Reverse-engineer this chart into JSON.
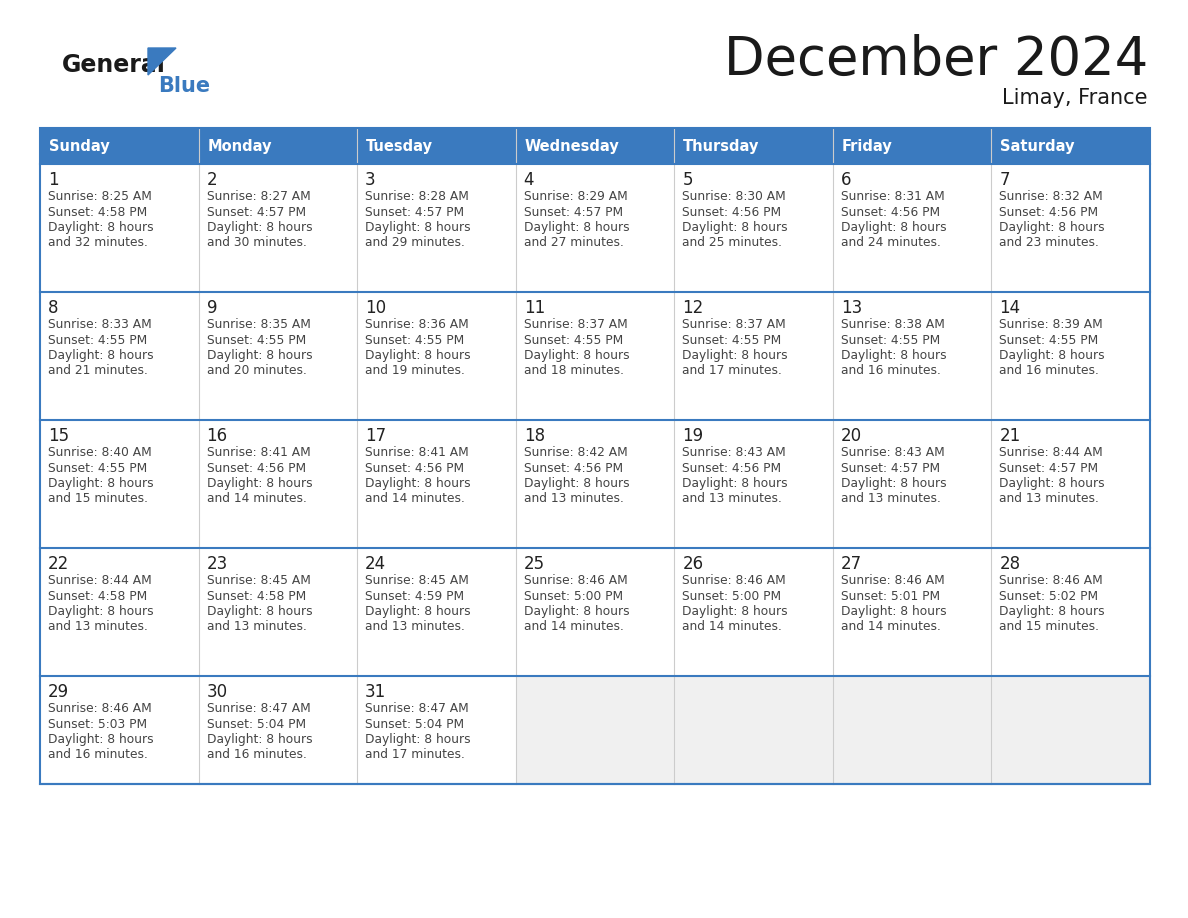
{
  "title": "December 2024",
  "subtitle": "Limay, France",
  "header_color": "#3a7abf",
  "header_text_color": "#ffffff",
  "cell_bg_white": "#ffffff",
  "cell_bg_gray": "#f0f0f0",
  "day_number_color": "#222222",
  "cell_text_color": "#444444",
  "border_color": "#3a7abf",
  "col_sep_color": "#cccccc",
  "days_of_week": [
    "Sunday",
    "Monday",
    "Tuesday",
    "Wednesday",
    "Thursday",
    "Friday",
    "Saturday"
  ],
  "logo_general_color": "#1a1a1a",
  "logo_blue_color": "#3a7abf",
  "title_color": "#1a1a1a",
  "weeks": [
    [
      {
        "day": 1,
        "sunrise": "8:25 AM",
        "sunset": "4:58 PM",
        "daylight": "8 hours and 32 minutes"
      },
      {
        "day": 2,
        "sunrise": "8:27 AM",
        "sunset": "4:57 PM",
        "daylight": "8 hours and 30 minutes"
      },
      {
        "day": 3,
        "sunrise": "8:28 AM",
        "sunset": "4:57 PM",
        "daylight": "8 hours and 29 minutes"
      },
      {
        "day": 4,
        "sunrise": "8:29 AM",
        "sunset": "4:57 PM",
        "daylight": "8 hours and 27 minutes"
      },
      {
        "day": 5,
        "sunrise": "8:30 AM",
        "sunset": "4:56 PM",
        "daylight": "8 hours and 25 minutes"
      },
      {
        "day": 6,
        "sunrise": "8:31 AM",
        "sunset": "4:56 PM",
        "daylight": "8 hours and 24 minutes"
      },
      {
        "day": 7,
        "sunrise": "8:32 AM",
        "sunset": "4:56 PM",
        "daylight": "8 hours and 23 minutes"
      }
    ],
    [
      {
        "day": 8,
        "sunrise": "8:33 AM",
        "sunset": "4:55 PM",
        "daylight": "8 hours and 21 minutes"
      },
      {
        "day": 9,
        "sunrise": "8:35 AM",
        "sunset": "4:55 PM",
        "daylight": "8 hours and 20 minutes"
      },
      {
        "day": 10,
        "sunrise": "8:36 AM",
        "sunset": "4:55 PM",
        "daylight": "8 hours and 19 minutes"
      },
      {
        "day": 11,
        "sunrise": "8:37 AM",
        "sunset": "4:55 PM",
        "daylight": "8 hours and 18 minutes"
      },
      {
        "day": 12,
        "sunrise": "8:37 AM",
        "sunset": "4:55 PM",
        "daylight": "8 hours and 17 minutes"
      },
      {
        "day": 13,
        "sunrise": "8:38 AM",
        "sunset": "4:55 PM",
        "daylight": "8 hours and 16 minutes"
      },
      {
        "day": 14,
        "sunrise": "8:39 AM",
        "sunset": "4:55 PM",
        "daylight": "8 hours and 16 minutes"
      }
    ],
    [
      {
        "day": 15,
        "sunrise": "8:40 AM",
        "sunset": "4:55 PM",
        "daylight": "8 hours and 15 minutes"
      },
      {
        "day": 16,
        "sunrise": "8:41 AM",
        "sunset": "4:56 PM",
        "daylight": "8 hours and 14 minutes"
      },
      {
        "day": 17,
        "sunrise": "8:41 AM",
        "sunset": "4:56 PM",
        "daylight": "8 hours and 14 minutes"
      },
      {
        "day": 18,
        "sunrise": "8:42 AM",
        "sunset": "4:56 PM",
        "daylight": "8 hours and 13 minutes"
      },
      {
        "day": 19,
        "sunrise": "8:43 AM",
        "sunset": "4:56 PM",
        "daylight": "8 hours and 13 minutes"
      },
      {
        "day": 20,
        "sunrise": "8:43 AM",
        "sunset": "4:57 PM",
        "daylight": "8 hours and 13 minutes"
      },
      {
        "day": 21,
        "sunrise": "8:44 AM",
        "sunset": "4:57 PM",
        "daylight": "8 hours and 13 minutes"
      }
    ],
    [
      {
        "day": 22,
        "sunrise": "8:44 AM",
        "sunset": "4:58 PM",
        "daylight": "8 hours and 13 minutes"
      },
      {
        "day": 23,
        "sunrise": "8:45 AM",
        "sunset": "4:58 PM",
        "daylight": "8 hours and 13 minutes"
      },
      {
        "day": 24,
        "sunrise": "8:45 AM",
        "sunset": "4:59 PM",
        "daylight": "8 hours and 13 minutes"
      },
      {
        "day": 25,
        "sunrise": "8:46 AM",
        "sunset": "5:00 PM",
        "daylight": "8 hours and 14 minutes"
      },
      {
        "day": 26,
        "sunrise": "8:46 AM",
        "sunset": "5:00 PM",
        "daylight": "8 hours and 14 minutes"
      },
      {
        "day": 27,
        "sunrise": "8:46 AM",
        "sunset": "5:01 PM",
        "daylight": "8 hours and 14 minutes"
      },
      {
        "day": 28,
        "sunrise": "8:46 AM",
        "sunset": "5:02 PM",
        "daylight": "8 hours and 15 minutes"
      }
    ],
    [
      {
        "day": 29,
        "sunrise": "8:46 AM",
        "sunset": "5:03 PM",
        "daylight": "8 hours and 16 minutes"
      },
      {
        "day": 30,
        "sunrise": "8:47 AM",
        "sunset": "5:04 PM",
        "daylight": "8 hours and 16 minutes"
      },
      {
        "day": 31,
        "sunrise": "8:47 AM",
        "sunset": "5:04 PM",
        "daylight": "8 hours and 17 minutes"
      },
      null,
      null,
      null,
      null
    ]
  ]
}
